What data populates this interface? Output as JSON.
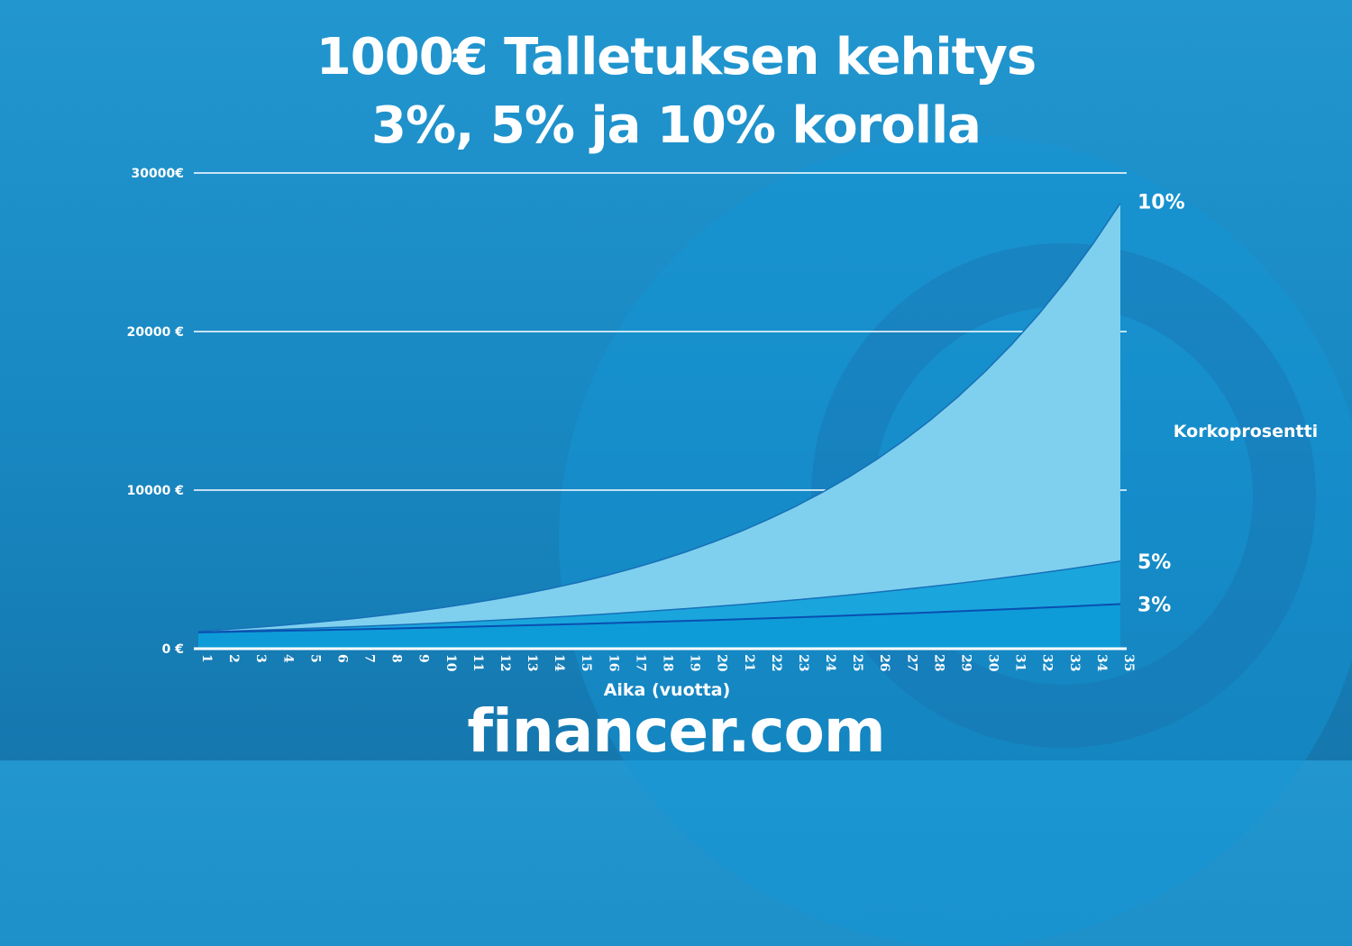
{
  "title_lines": [
    "1000€ Talletuksen kehitys",
    "3%, 5% ja 10% korolla"
  ],
  "logo_text": "financer.com",
  "colors": {
    "background": "#1b8ac4",
    "area_10": "#7fd0ee",
    "area_5": "#1aa6dd",
    "area_3": "#0d9cd8",
    "line_3": "#0a4fb0",
    "grid": "#ffffff"
  },
  "chart_data": {
    "type": "area",
    "title": "1000€ Talletuksen kehitys 3%, 5% ja 10% korolla",
    "xlabel": "Aika (vuotta)",
    "ylabel": "",
    "legend_title": "Korkoprosentti",
    "ylim": [
      0,
      30000
    ],
    "yticks": [
      {
        "value": 0,
        "label": "0 €"
      },
      {
        "value": 10000,
        "label": "10000 €"
      },
      {
        "value": 20000,
        "label": "20000 €"
      },
      {
        "value": 30000,
        "label": "30000€"
      }
    ],
    "grid": true,
    "x": [
      1,
      2,
      3,
      4,
      5,
      6,
      7,
      8,
      9,
      10,
      11,
      12,
      13,
      14,
      15,
      16,
      17,
      18,
      19,
      20,
      21,
      22,
      23,
      24,
      25,
      26,
      27,
      28,
      29,
      30,
      31,
      32,
      33,
      34,
      35
    ],
    "series": [
      {
        "name": "10%",
        "values": [
          1100,
          1210,
          1331,
          1464,
          1611,
          1772,
          1949,
          2144,
          2358,
          2594,
          2853,
          3138,
          3452,
          3797,
          4177,
          4595,
          5054,
          5560,
          6116,
          6727,
          7400,
          8140,
          8954,
          9850,
          10835,
          11918,
          13110,
          14421,
          15863,
          17449,
          19194,
          21114,
          23225,
          25548,
          28102
        ]
      },
      {
        "name": "5%",
        "values": [
          1050,
          1103,
          1158,
          1216,
          1276,
          1340,
          1407,
          1477,
          1551,
          1629,
          1710,
          1796,
          1886,
          1980,
          2079,
          2183,
          2292,
          2407,
          2527,
          2653,
          2786,
          2925,
          3072,
          3225,
          3386,
          3556,
          3733,
          3920,
          4116,
          4322,
          4538,
          4765,
          5003,
          5253,
          5516
        ]
      },
      {
        "name": "3%",
        "values": [
          1030,
          1061,
          1093,
          1126,
          1159,
          1194,
          1230,
          1267,
          1305,
          1344,
          1384,
          1426,
          1469,
          1513,
          1558,
          1605,
          1653,
          1702,
          1754,
          1806,
          1860,
          1916,
          1974,
          2033,
          2094,
          2157,
          2221,
          2288,
          2357,
          2427,
          2500,
          2575,
          2652,
          2732,
          2814
        ]
      }
    ]
  }
}
